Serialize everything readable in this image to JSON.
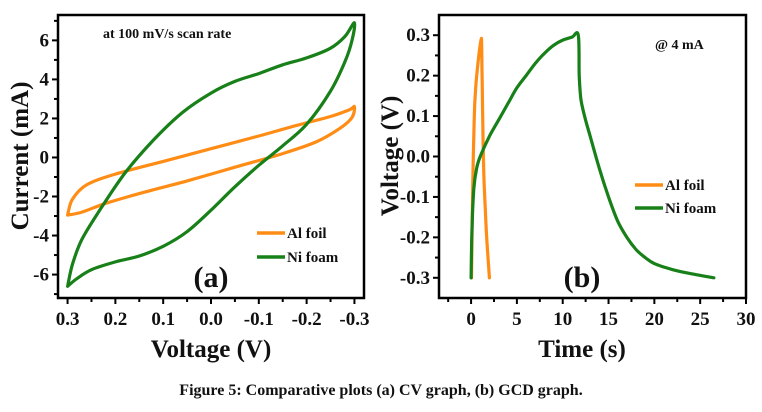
{
  "caption": "Figure 5: Comparative plots (a) CV graph, (b) GCD graph.",
  "colors": {
    "al_foil": "#ff8c14",
    "ni_foam": "#188018",
    "axis": "#000000"
  },
  "chart_data": [
    {
      "type": "line",
      "panel_label": "(a)",
      "annotation": "at 100 mV/s scan rate",
      "xlabel": "Voltage (V)",
      "ylabel": "Current (mA)",
      "xlim": [
        0.32,
        -0.32
      ],
      "ylim": [
        -7.2,
        7.3
      ],
      "x_reversed": true,
      "xticks": [
        0.3,
        0.2,
        0.1,
        0.0,
        -0.1,
        -0.2,
        -0.3
      ],
      "xtick_labels": [
        "0.3",
        "0.2",
        "0.1",
        "0.0",
        "-0.1",
        "-0.2",
        "-0.3"
      ],
      "yticks": [
        6,
        4,
        2,
        0,
        -2,
        -4,
        -6
      ],
      "ytick_labels": [
        "6",
        "4",
        "2",
        "0",
        "-2",
        "-4",
        "-6"
      ],
      "legend": {
        "position": "bottom-right",
        "entries": [
          "Al foil",
          "Ni foam"
        ]
      },
      "grid": false,
      "series": [
        {
          "name": "Al foil",
          "color_key": "al_foil",
          "closed": true,
          "x": [
            0.3,
            0.27,
            0.22,
            0.15,
            0.05,
            -0.05,
            -0.15,
            -0.22,
            -0.27,
            -0.295,
            -0.3,
            -0.29,
            -0.25,
            -0.18,
            -0.1,
            0.0,
            0.1,
            0.2,
            0.26,
            0.29,
            0.3
          ],
          "y": [
            -2.95,
            -2.8,
            -2.35,
            -1.85,
            -1.2,
            -0.5,
            0.2,
            0.8,
            1.5,
            2.05,
            2.6,
            2.45,
            2.1,
            1.65,
            1.1,
            0.45,
            -0.2,
            -0.85,
            -1.4,
            -2.15,
            -2.95
          ]
        },
        {
          "name": "Ni foam",
          "color_key": "ni_foam",
          "closed": true,
          "x": [
            0.3,
            0.29,
            0.27,
            0.23,
            0.18,
            0.12,
            0.06,
            0.0,
            -0.05,
            -0.1,
            -0.15,
            -0.2,
            -0.25,
            -0.28,
            -0.3,
            -0.295,
            -0.28,
            -0.25,
            -0.2,
            -0.15,
            -0.1,
            -0.05,
            0.0,
            0.05,
            0.1,
            0.15,
            0.2,
            0.25,
            0.28,
            0.3
          ],
          "y": [
            -6.6,
            -5.5,
            -4.2,
            -2.6,
            -0.8,
            0.9,
            2.3,
            3.3,
            3.9,
            4.3,
            4.75,
            5.1,
            5.6,
            6.2,
            6.9,
            6.0,
            4.9,
            3.4,
            1.7,
            0.6,
            -0.4,
            -1.5,
            -2.7,
            -3.8,
            -4.55,
            -5.05,
            -5.35,
            -5.75,
            -6.2,
            -6.6
          ]
        }
      ]
    },
    {
      "type": "line",
      "panel_label": "(b)",
      "annotation": "@ 4 mA",
      "xlabel": "Time (s)",
      "ylabel": "Voltage (V)",
      "xlim": [
        -3.5,
        30
      ],
      "ylim": [
        -0.35,
        0.35
      ],
      "xticks": [
        0,
        5,
        10,
        15,
        20,
        25,
        30
      ],
      "xtick_labels": [
        "0",
        "5",
        "10",
        "15",
        "20",
        "25",
        "30"
      ],
      "yticks": [
        0.3,
        0.2,
        0.1,
        0.0,
        -0.1,
        -0.2,
        -0.3
      ],
      "ytick_labels": [
        "0.3",
        "0.2",
        "0.1",
        "0.0",
        "-0.1",
        "-0.2",
        "-0.3"
      ],
      "legend": {
        "position": "middle-right",
        "entries": [
          "Al foil",
          "Ni foam"
        ]
      },
      "grid": false,
      "series": [
        {
          "name": "Al foil",
          "color_key": "al_foil",
          "closed": false,
          "x": [
            0.05,
            0.1,
            0.2,
            0.35,
            0.5,
            0.7,
            0.9,
            1.1,
            1.15,
            1.2,
            1.3,
            1.4,
            1.55,
            1.7,
            1.85,
            2.0
          ],
          "y": [
            -0.3,
            -0.2,
            -0.05,
            0.1,
            0.17,
            0.22,
            0.26,
            0.29,
            0.28,
            0.2,
            0.05,
            -0.05,
            -0.13,
            -0.2,
            -0.25,
            -0.3
          ]
        },
        {
          "name": "Ni foam",
          "color_key": "ni_foam",
          "closed": false,
          "x": [
            0.0,
            0.1,
            0.3,
            0.6,
            1.0,
            2.0,
            3.0,
            4.0,
            5.0,
            6.0,
            7.0,
            8.0,
            9.0,
            10.0,
            11.0,
            11.7,
            11.8,
            12.0,
            12.5,
            13.0,
            14.0,
            15.0,
            16.0,
            17.0,
            18.0,
            19.0,
            20.0,
            22.0,
            24.0,
            26.5
          ],
          "y": [
            -0.3,
            -0.18,
            -0.08,
            -0.03,
            0.0,
            0.05,
            0.09,
            0.13,
            0.17,
            0.2,
            0.23,
            0.255,
            0.275,
            0.288,
            0.295,
            0.3,
            0.2,
            0.14,
            0.09,
            0.05,
            -0.03,
            -0.1,
            -0.16,
            -0.2,
            -0.23,
            -0.25,
            -0.265,
            -0.28,
            -0.29,
            -0.3
          ]
        }
      ]
    }
  ]
}
